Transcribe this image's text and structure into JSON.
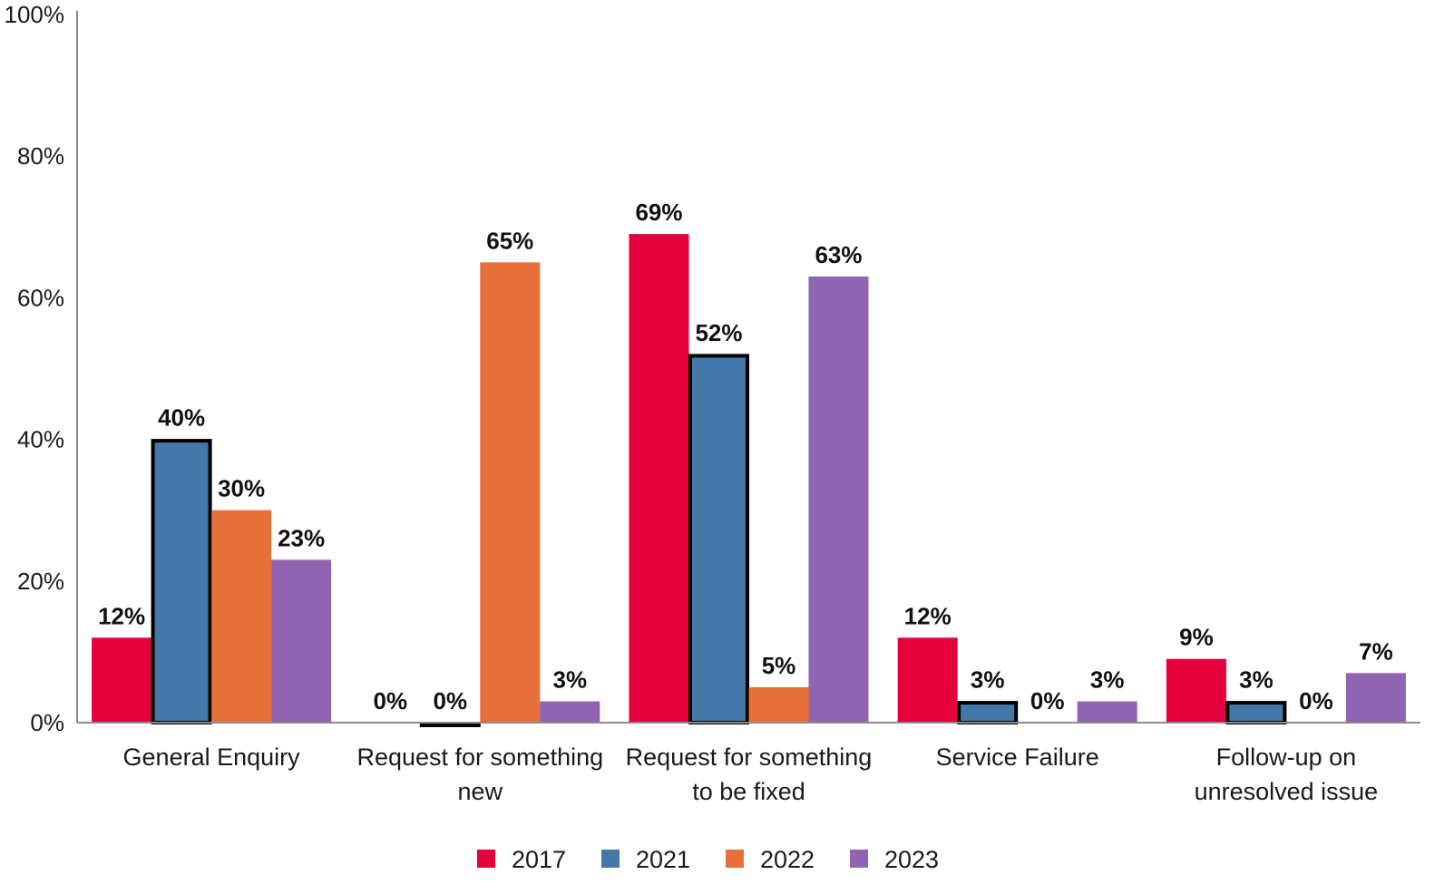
{
  "chart_data": {
    "type": "bar",
    "title": "",
    "xlabel": "",
    "ylabel": "",
    "ylim": [
      0,
      100
    ],
    "yticks": [
      "0%",
      "20%",
      "40%",
      "60%",
      "80%",
      "100%"
    ],
    "grid": false,
    "legend_position": "bottom",
    "categories": [
      [
        "General Enquiry"
      ],
      [
        "Request for something",
        "new"
      ],
      [
        "Request for something",
        "to be fixed"
      ],
      [
        "Service Failure"
      ],
      [
        "Follow-up on",
        "unresolved issue"
      ]
    ],
    "series": [
      {
        "name": "2017",
        "color": "#e4003b",
        "outlined": false,
        "values": [
          12,
          0,
          69,
          12,
          9
        ],
        "labels": [
          "12%",
          "0%",
          "69%",
          "12%",
          "9%"
        ]
      },
      {
        "name": "2021",
        "color": "#4378a9",
        "outlined": true,
        "values": [
          40,
          0,
          52,
          3,
          3
        ],
        "labels": [
          "40%",
          "0%",
          "52%",
          "3%",
          "3%"
        ]
      },
      {
        "name": "2022",
        "color": "#e8703a",
        "outlined": false,
        "values": [
          30,
          65,
          5,
          0,
          0
        ],
        "labels": [
          "30%",
          "65%",
          "5%",
          "0%",
          "0%"
        ]
      },
      {
        "name": "2023",
        "color": "#9164b2",
        "outlined": false,
        "values": [
          23,
          3,
          63,
          3,
          7
        ],
        "labels": [
          "23%",
          "3%",
          "63%",
          "3%",
          "7%"
        ]
      }
    ]
  }
}
